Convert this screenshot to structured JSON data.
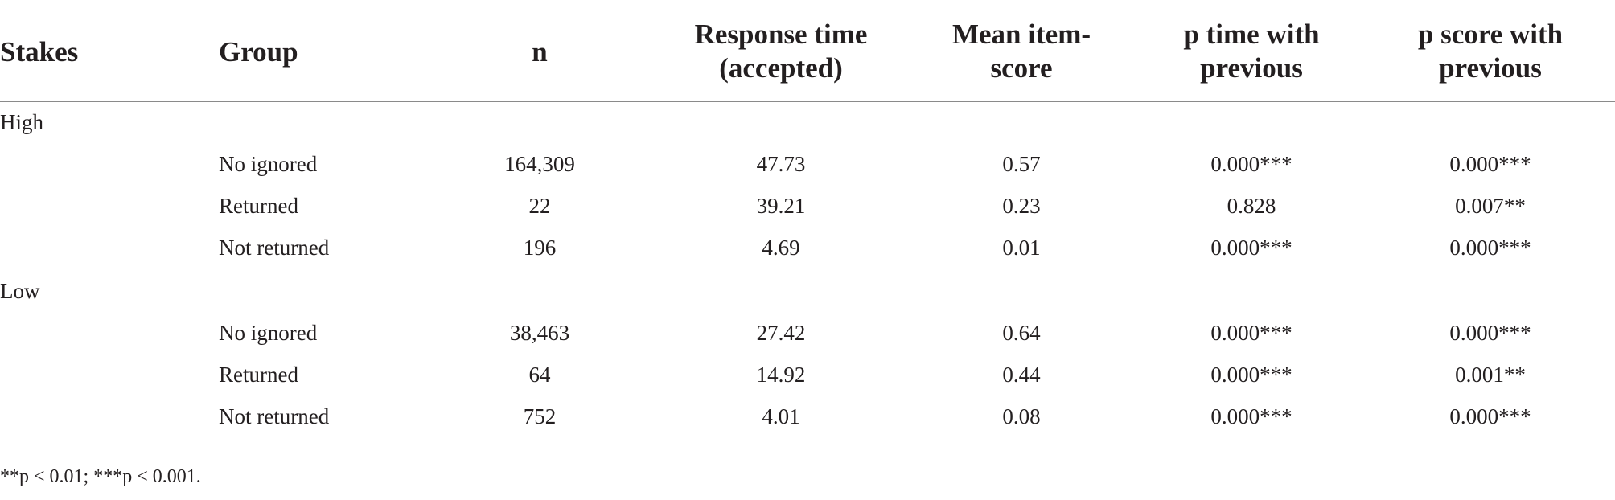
{
  "headers": {
    "stakes": "Stakes",
    "group": "Group",
    "n": "n",
    "response_time_line1": "Response time",
    "response_time_line2": "(accepted)",
    "mean_item_score_line1": "Mean item-",
    "mean_item_score_line2": "score",
    "p_time_line1": "p time with",
    "p_time_line2": "previous",
    "p_score_line1": "p score with",
    "p_score_line2": "previous"
  },
  "sections": [
    {
      "label": "High",
      "rows": [
        {
          "group": "No ignored",
          "n": "164,309",
          "response_time": "47.73",
          "mean_score": "0.57",
          "p_time": "0.000***",
          "p_score": "0.000***"
        },
        {
          "group": "Returned",
          "n": "22",
          "response_time": "39.21",
          "mean_score": "0.23",
          "p_time": "0.828",
          "p_score": "0.007**"
        },
        {
          "group": "Not returned",
          "n": "196",
          "response_time": "4.69",
          "mean_score": "0.01",
          "p_time": "0.000***",
          "p_score": "0.000***"
        }
      ]
    },
    {
      "label": "Low",
      "rows": [
        {
          "group": "No ignored",
          "n": "38,463",
          "response_time": "27.42",
          "mean_score": "0.64",
          "p_time": "0.000***",
          "p_score": "0.000***"
        },
        {
          "group": "Returned",
          "n": "64",
          "response_time": "14.92",
          "mean_score": "0.44",
          "p_time": "0.000***",
          "p_score": "0.001**"
        },
        {
          "group": "Not returned",
          "n": "752",
          "response_time": "4.01",
          "mean_score": "0.08",
          "p_time": "0.000***",
          "p_score": "0.000***"
        }
      ]
    }
  ],
  "footnote": "**p < 0.01;  ***p < 0.001."
}
